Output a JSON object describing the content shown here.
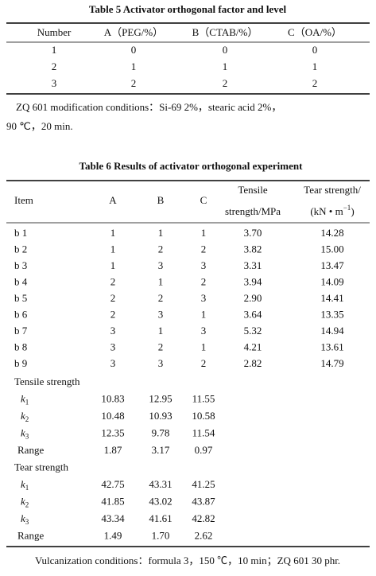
{
  "table5": {
    "title": "Table 5   Activator orthogonal factor and level",
    "columns": [
      "Number",
      "A（PEG/%）",
      "B（CTAB/%）",
      "C（OA/%）"
    ],
    "rows": [
      [
        "1",
        "0",
        "0",
        "0"
      ],
      [
        "2",
        "1",
        "1",
        "1"
      ],
      [
        "3",
        "2",
        "2",
        "2"
      ]
    ],
    "note": [
      "ZQ 601 modification conditions：Si-69 2%，stearic acid 2%，",
      "90 ℃，20 min."
    ]
  },
  "table6": {
    "title": "Table 6   Results of activator orthogonal experiment",
    "header": {
      "item": "Item",
      "a": "A",
      "b": "B",
      "c": "C",
      "tensile": [
        "Tensile",
        "strength/MPa"
      ],
      "tear": {
        "line1": "Tear strength/",
        "line2": "(kN • m",
        "sup": "−1",
        "end": ")"
      }
    },
    "rows": [
      [
        "b 1",
        "1",
        "1",
        "1",
        "3.70",
        "14.28"
      ],
      [
        "b 2",
        "1",
        "2",
        "2",
        "3.82",
        "15.00"
      ],
      [
        "b 3",
        "1",
        "3",
        "3",
        "3.31",
        "13.47"
      ],
      [
        "b 4",
        "2",
        "1",
        "2",
        "3.94",
        "14.09"
      ],
      [
        "b 5",
        "2",
        "2",
        "3",
        "2.90",
        "14.41"
      ],
      [
        "b 6",
        "2",
        "3",
        "1",
        "3.64",
        "13.35"
      ],
      [
        "b 7",
        "3",
        "1",
        "3",
        "5.32",
        "14.94"
      ],
      [
        "b 8",
        "3",
        "2",
        "1",
        "4.21",
        "13.61"
      ],
      [
        "b 9",
        "3",
        "3",
        "2",
        "2.82",
        "14.79"
      ]
    ],
    "groups": [
      {
        "label": "Tensile strength",
        "rows": [
          {
            "label": "k",
            "sub": "1",
            "values": [
              "10.83",
              "12.95",
              "11.55"
            ]
          },
          {
            "label": "k",
            "sub": "2",
            "values": [
              "10.48",
              "10.93",
              "10.58"
            ]
          },
          {
            "label": "k",
            "sub": "3",
            "values": [
              "12.35",
              "9.78",
              "11.54"
            ]
          },
          {
            "label": "Range",
            "values": [
              "1.87",
              "3.17",
              "0.97"
            ]
          }
        ]
      },
      {
        "label": "Tear strength",
        "rows": [
          {
            "label": "k",
            "sub": "1",
            "values": [
              "42.75",
              "43.31",
              "41.25"
            ]
          },
          {
            "label": "k",
            "sub": "2",
            "values": [
              "41.85",
              "43.02",
              "43.87"
            ]
          },
          {
            "label": "k",
            "sub": "3",
            "values": [
              "43.34",
              "41.61",
              "42.82"
            ]
          },
          {
            "label": "Range",
            "values": [
              "1.49",
              "1.70",
              "2.62"
            ]
          }
        ]
      }
    ],
    "footnote": "Vulcanization conditions：formula 3，150 ℃，10 min；ZQ 601 30 phr."
  }
}
